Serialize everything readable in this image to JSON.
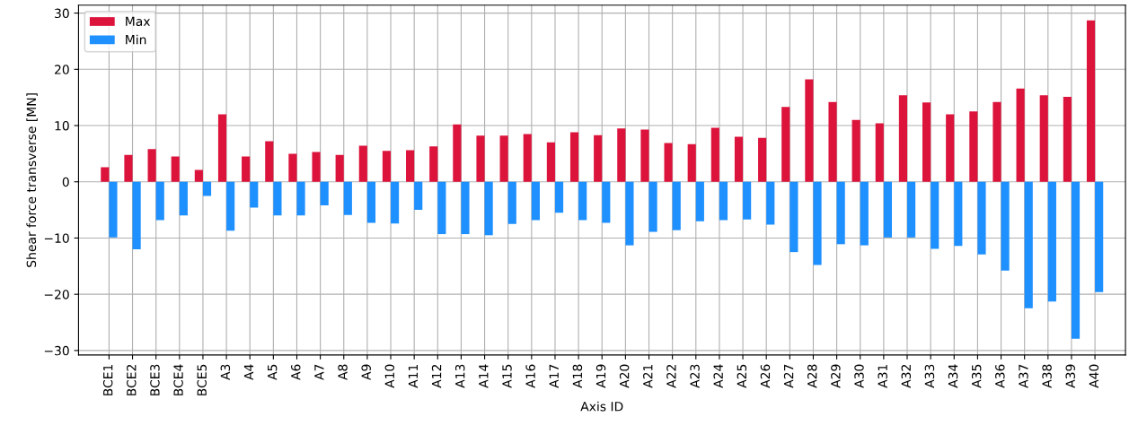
{
  "chart_data": {
    "type": "bar",
    "xlabel": "Axis ID",
    "ylabel": "Shear force transverse [MN]",
    "categories": [
      "BCE1",
      "BCE2",
      "BCE3",
      "BCE4",
      "BCE5",
      "A3",
      "A4",
      "A5",
      "A6",
      "A7",
      "A8",
      "A9",
      "A10",
      "A11",
      "A12",
      "A13",
      "A14",
      "A15",
      "A16",
      "A17",
      "A18",
      "A19",
      "A20",
      "A21",
      "A22",
      "A23",
      "A24",
      "A25",
      "A26",
      "A27",
      "A28",
      "A29",
      "A30",
      "A31",
      "A32",
      "A33",
      "A34",
      "A35",
      "A36",
      "A37",
      "A38",
      "A39",
      "A40"
    ],
    "series": [
      {
        "name": "Max",
        "color": "#dc143c",
        "values": [
          2.6,
          4.8,
          5.8,
          4.5,
          2.1,
          12.0,
          4.5,
          7.2,
          5.0,
          5.3,
          4.8,
          6.4,
          5.5,
          5.6,
          6.3,
          10.2,
          8.2,
          8.2,
          8.5,
          7.0,
          8.8,
          8.3,
          9.5,
          9.3,
          6.9,
          6.7,
          9.6,
          8.0,
          7.8,
          13.3,
          18.2,
          14.2,
          11.0,
          10.4,
          15.4,
          14.1,
          12.0,
          12.5,
          14.2,
          16.6,
          15.4,
          15.1,
          28.7
        ]
      },
      {
        "name": "Min",
        "color": "#1e90ff",
        "values": [
          -9.9,
          -12.0,
          -6.8,
          -6.0,
          -2.5,
          -8.7,
          -4.6,
          -6.0,
          -6.0,
          -4.2,
          -5.9,
          -7.3,
          -7.4,
          -5.0,
          -9.3,
          -9.3,
          -9.5,
          -7.5,
          -6.8,
          -5.5,
          -6.8,
          -7.3,
          -11.3,
          -8.9,
          -8.6,
          -7.0,
          -6.8,
          -6.7,
          -7.6,
          -12.5,
          -14.8,
          -11.1,
          -11.3,
          -9.9,
          -9.9,
          -11.9,
          -11.4,
          -12.9,
          -15.8,
          -22.5,
          -21.3,
          -27.9,
          -19.6
        ]
      }
    ],
    "ylim": [
      -30.8,
      31.4
    ],
    "yticks": [
      {
        "value": -30,
        "label": "−30"
      },
      {
        "value": -20,
        "label": "−20"
      },
      {
        "value": -10,
        "label": "−10"
      },
      0,
      10,
      20,
      30
    ],
    "grid": true,
    "legend": "top left"
  }
}
